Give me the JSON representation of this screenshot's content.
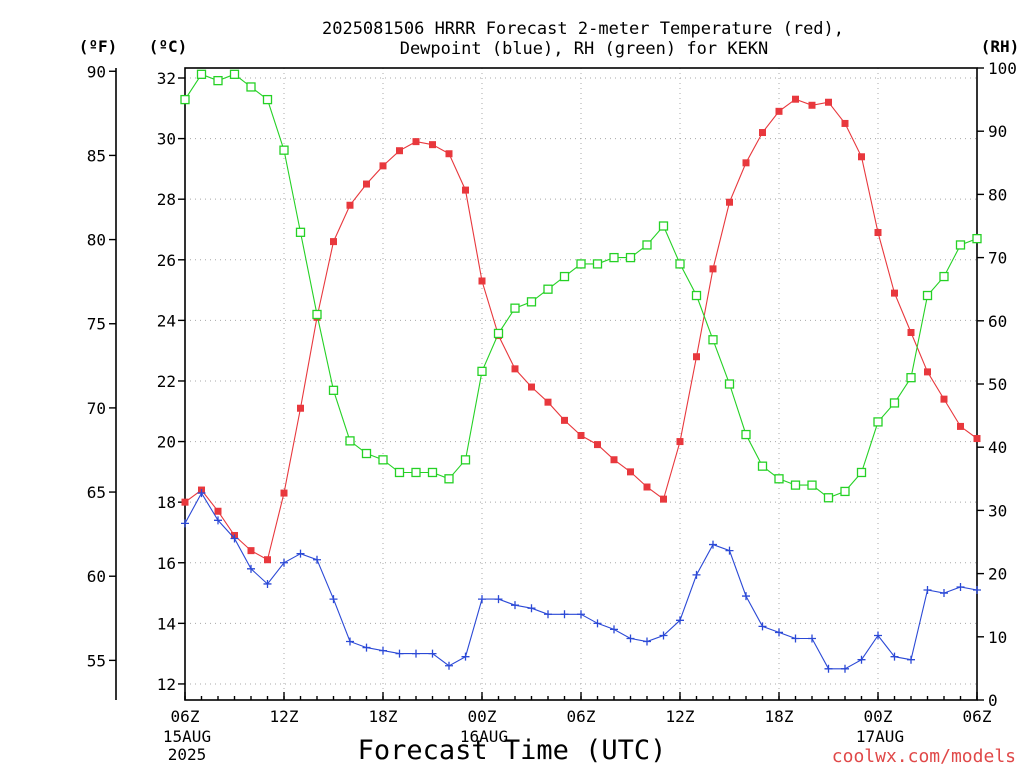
{
  "chart_data": {
    "type": "line",
    "title_prefix": "2025081506 HRRR Forecast",
    "title_suffix": "for KEKN",
    "xlabel": "Forecast Time (UTC)",
    "credit": "coolwx.com/models",
    "credit_color": "#e04848",
    "grid": true,
    "x": [
      "15AUG 06Z",
      "15AUG 07Z",
      "15AUG 08Z",
      "15AUG 09Z",
      "15AUG 10Z",
      "15AUG 11Z",
      "15AUG 12Z",
      "15AUG 13Z",
      "15AUG 14Z",
      "15AUG 15Z",
      "15AUG 16Z",
      "15AUG 17Z",
      "15AUG 18Z",
      "15AUG 19Z",
      "15AUG 20Z",
      "15AUG 21Z",
      "15AUG 22Z",
      "15AUG 23Z",
      "16AUG 00Z",
      "16AUG 01Z",
      "16AUG 02Z",
      "16AUG 03Z",
      "16AUG 04Z",
      "16AUG 05Z",
      "16AUG 06Z",
      "16AUG 07Z",
      "16AUG 08Z",
      "16AUG 09Z",
      "16AUG 10Z",
      "16AUG 11Z",
      "16AUG 12Z",
      "16AUG 13Z",
      "16AUG 14Z",
      "16AUG 15Z",
      "16AUG 16Z",
      "16AUG 17Z",
      "16AUG 18Z",
      "16AUG 19Z",
      "16AUG 20Z",
      "16AUG 21Z",
      "16AUG 22Z",
      "16AUG 23Z",
      "17AUG 00Z",
      "17AUG 01Z",
      "17AUG 02Z",
      "17AUG 03Z",
      "17AUG 04Z",
      "17AUG 05Z",
      "17AUG 06Z"
    ],
    "x_ticks": [
      {
        "label": "06Z",
        "date": "15AUG",
        "year": "2025",
        "at": "15AUG 06Z"
      },
      {
        "label": "12Z",
        "at": "15AUG 12Z"
      },
      {
        "label": "18Z",
        "at": "15AUG 18Z"
      },
      {
        "label": "00Z",
        "date": "16AUG",
        "at": "16AUG 00Z"
      },
      {
        "label": "06Z",
        "at": "16AUG 06Z"
      },
      {
        "label": "12Z",
        "at": "16AUG 12Z"
      },
      {
        "label": "18Z",
        "at": "16AUG 18Z"
      },
      {
        "label": "00Z",
        "date": "17AUG",
        "at": "17AUG 00Z"
      },
      {
        "label": "06Z",
        "at": "17AUG 06Z"
      }
    ],
    "y_axes": {
      "fahrenheit": {
        "label": "(ºF)",
        "ticks": [
          90,
          85,
          80,
          75,
          70,
          65,
          60,
          55
        ]
      },
      "celsius": {
        "label": "(ºC)",
        "ticks": [
          32,
          30,
          28,
          26,
          24,
          22,
          20,
          18,
          16,
          14,
          12
        ],
        "range": [
          11.47,
          32.33
        ],
        "series": [
          0,
          1
        ]
      },
      "rh": {
        "label": "(RH)",
        "ticks": [
          100,
          90,
          80,
          70,
          60,
          50,
          40,
          30,
          20,
          10,
          0
        ],
        "range": [
          0,
          100
        ],
        "series": [
          2
        ]
      }
    },
    "series": [
      {
        "name": "2-meter Temperature",
        "legend": "(red),",
        "color": "#e8383d",
        "marker": "filled-square",
        "values": [
          18.0,
          18.4,
          17.7,
          16.9,
          16.4,
          16.1,
          18.3,
          21.1,
          24.1,
          26.6,
          27.8,
          28.5,
          29.1,
          29.6,
          29.9,
          29.8,
          29.5,
          28.3,
          25.3,
          23.5,
          22.4,
          21.8,
          21.3,
          20.7,
          20.2,
          19.9,
          19.4,
          19.0,
          18.5,
          18.1,
          20.0,
          22.8,
          25.7,
          27.9,
          29.2,
          30.2,
          30.9,
          31.3,
          31.1,
          31.2,
          30.5,
          29.4,
          26.9,
          24.9,
          23.6,
          22.3,
          21.4,
          20.5,
          20.1
        ]
      },
      {
        "name": "Dewpoint",
        "legend": "(blue),",
        "color": "#2b49d6",
        "marker": "plus",
        "values": [
          17.3,
          18.3,
          17.4,
          16.8,
          15.8,
          15.3,
          16.0,
          16.3,
          16.1,
          14.8,
          13.4,
          13.2,
          13.1,
          13.0,
          13.0,
          13.0,
          12.6,
          12.9,
          14.8,
          14.8,
          14.6,
          14.5,
          14.3,
          14.3,
          14.3,
          14.0,
          13.8,
          13.5,
          13.4,
          13.6,
          14.1,
          15.6,
          16.6,
          16.4,
          14.9,
          13.9,
          13.7,
          13.5,
          13.5,
          12.5,
          12.5,
          12.8,
          13.6,
          12.9,
          12.8,
          15.1,
          15.0,
          15.2,
          15.1
        ]
      },
      {
        "name": "RH",
        "legend": "(green)",
        "color": "#25d125",
        "marker": "open-square",
        "values": [
          95,
          99,
          98,
          99,
          97,
          95,
          87,
          74,
          61,
          49,
          41,
          39,
          38,
          36,
          36,
          36,
          35,
          38,
          52,
          58,
          62,
          63,
          65,
          67,
          69,
          69,
          70,
          70,
          72,
          75,
          69,
          64,
          57,
          50,
          42,
          37,
          35,
          34,
          34,
          32,
          33,
          36,
          44,
          47,
          51,
          64,
          67,
          72,
          73
        ]
      }
    ]
  }
}
